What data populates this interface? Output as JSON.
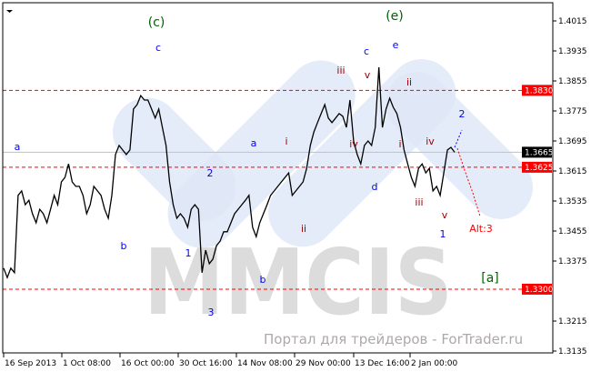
{
  "chart_data": {
    "type": "line",
    "title": "",
    "xlabel": "",
    "ylabel": "",
    "ylim": [
      1.3125,
      1.406
    ],
    "grid": false,
    "y_ticks": [
      "1.4015",
      "1.3935",
      "1.3855",
      "1.3775",
      "1.3695",
      "1.3615",
      "1.3535",
      "1.3455",
      "1.3375",
      "1.3215",
      "1.3135"
    ],
    "x_ticks": [
      "16 Sep 2013",
      "1 Oct 08:00",
      "16 Oct 00:00",
      "30 Oct 16:00",
      "14 Nov 08:00",
      "29 Nov 00:00",
      "13 Dec 16:00",
      "2 Jan 00:00"
    ],
    "price_series": [
      1.3356,
      1.3331,
      1.3356,
      1.3344,
      1.355,
      1.3562,
      1.3525,
      1.3537,
      1.3501,
      1.3477,
      1.3513,
      1.3501,
      1.3477,
      1.3513,
      1.355,
      1.3525,
      1.3586,
      1.3598,
      1.3634,
      1.3586,
      1.3574,
      1.3574,
      1.355,
      1.3501,
      1.3525,
      1.3574,
      1.3562,
      1.355,
      1.3513,
      1.3489,
      1.355,
      1.3659,
      1.3683,
      1.3671,
      1.3659,
      1.3671,
      1.378,
      1.3792,
      1.3816,
      1.3804,
      1.3804,
      1.378,
      1.3756,
      1.378,
      1.3731,
      1.3683,
      1.3586,
      1.3525,
      1.3489,
      1.3501,
      1.3489,
      1.3465,
      1.3513,
      1.3525,
      1.3513,
      1.3344,
      1.3404,
      1.3368,
      1.338,
      1.3416,
      1.3428,
      1.3453,
      1.3453,
      1.3477,
      1.3501,
      1.3513,
      1.3525,
      1.3537,
      1.355,
      1.3465,
      1.344,
      1.3477,
      1.3501,
      1.3525,
      1.355,
      1.3562,
      1.3574,
      1.3586,
      1.3598,
      1.361,
      1.355,
      1.3562,
      1.3574,
      1.3586,
      1.3622,
      1.3683,
      1.3719,
      1.3744,
      1.3768,
      1.3792,
      1.3756,
      1.3744,
      1.3756,
      1.3768,
      1.3761,
      1.3731,
      1.3804,
      1.3695,
      1.3659,
      1.3634,
      1.3683,
      1.3695,
      1.3683,
      1.3731,
      1.3891,
      1.3731,
      1.378,
      1.3809,
      1.3785,
      1.3768,
      1.3731,
      1.3671,
      1.3634,
      1.3598,
      1.3574,
      1.3622,
      1.3634,
      1.361,
      1.3622,
      1.3562,
      1.3574,
      1.355,
      1.361,
      1.3671,
      1.3678,
      1.3665
    ],
    "current_price": {
      "value": 1.3665,
      "label": "1.3665",
      "color": "#000000"
    },
    "levels": [
      {
        "value": 1.383,
        "label": "1.3830",
        "color": "#ff0000"
      },
      {
        "value": 1.3625,
        "label": "1.3625",
        "color": "#ff0000"
      },
      {
        "value": 1.33,
        "label": "1.3300",
        "color": "#ff0000"
      }
    ],
    "wave_labels": [
      {
        "text": "(c)",
        "color": "#006400"
      },
      {
        "text": "c",
        "color": "#0000ff"
      },
      {
        "text": "a",
        "color": "#0000ff"
      },
      {
        "text": "b",
        "color": "#0000ff"
      },
      {
        "text": "1",
        "color": "#0000ff"
      },
      {
        "text": "2",
        "color": "#0000ff"
      },
      {
        "text": "3",
        "color": "#0000ff"
      },
      {
        "text": "a",
        "color": "#0000ff"
      },
      {
        "text": "i",
        "color": "#a00000"
      },
      {
        "text": "b",
        "color": "#0000ff"
      },
      {
        "text": "ii",
        "color": "#a00000"
      },
      {
        "text": "iii",
        "color": "#a00000"
      },
      {
        "text": "v",
        "color": "#a00000"
      },
      {
        "text": "c",
        "color": "#0000ff"
      },
      {
        "text": "iv",
        "color": "#a00000"
      },
      {
        "text": "d",
        "color": "#0000ff"
      },
      {
        "text": "(e)",
        "color": "#006400"
      },
      {
        "text": "e",
        "color": "#0000ff"
      },
      {
        "text": "ii",
        "color": "#a00000"
      },
      {
        "text": "i",
        "color": "#a00000"
      },
      {
        "text": "iv",
        "color": "#a00000"
      },
      {
        "text": "iii",
        "color": "#a00000"
      },
      {
        "text": "v",
        "color": "#a00000"
      },
      {
        "text": "1",
        "color": "#0000ff"
      },
      {
        "text": "2",
        "color": "#0000ff"
      },
      {
        "text": "Alt:3",
        "color": "#ff0000"
      },
      {
        "text": "[a]",
        "color": "#006400"
      }
    ],
    "forecast_colors": {
      "main": "#0000ff",
      "alt": "#ff0000"
    }
  },
  "watermark": {
    "logo": "MMCIS",
    "text": "Портал для трейдеров - ForTrader.ru"
  },
  "icons": {
    "menu": "triangle-down-icon"
  }
}
